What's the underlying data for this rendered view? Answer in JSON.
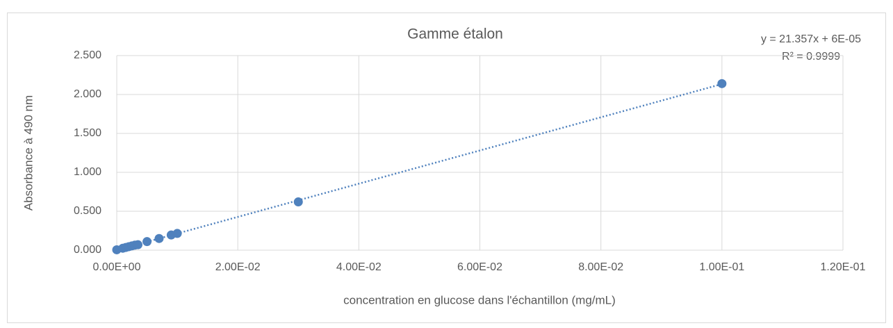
{
  "chart_data": {
    "type": "scatter",
    "title": "Gamme étalon",
    "x_label": "concentration en glucose dans l'échantillon (mg/mL)",
    "y_label": "Absorbance à 490 nm",
    "trendline_equation": "y = 21.357x + 6E-05",
    "trendline_r2": "R² = 0.9999",
    "color": "#4f81bd",
    "grid": true,
    "x": [
      0,
      0.001,
      0.0015,
      0.002,
      0.0025,
      0.003,
      0.0035,
      0.005,
      0.007,
      0.009,
      0.01,
      0.03,
      0.1
    ],
    "values": [
      0.005,
      0.025,
      0.035,
      0.045,
      0.055,
      0.065,
      0.07,
      0.11,
      0.15,
      0.195,
      0.215,
      0.62,
      2.14
    ],
    "xlim": [
      0,
      0.12
    ],
    "xticks": [
      {
        "value": 0,
        "label": "0.00E+00"
      },
      {
        "value": 0.02,
        "label": "2.00E-02"
      },
      {
        "value": 0.04,
        "label": "4.00E-02"
      },
      {
        "value": 0.06,
        "label": "6.00E-02"
      },
      {
        "value": 0.08,
        "label": "8.00E-02"
      },
      {
        "value": 0.1,
        "label": "1.00E-01"
      },
      {
        "value": 0.12,
        "label": "1.20E-01"
      }
    ],
    "ylim": [
      0,
      2.5
    ],
    "yticks": [
      {
        "value": 0,
        "label": "0.000"
      },
      {
        "value": 0.5,
        "label": "0.500"
      },
      {
        "value": 1,
        "label": "1.000"
      },
      {
        "value": 1.5,
        "label": "1.500"
      },
      {
        "value": 2,
        "label": "2.000"
      },
      {
        "value": 2.5,
        "label": "2.500"
      }
    ]
  }
}
